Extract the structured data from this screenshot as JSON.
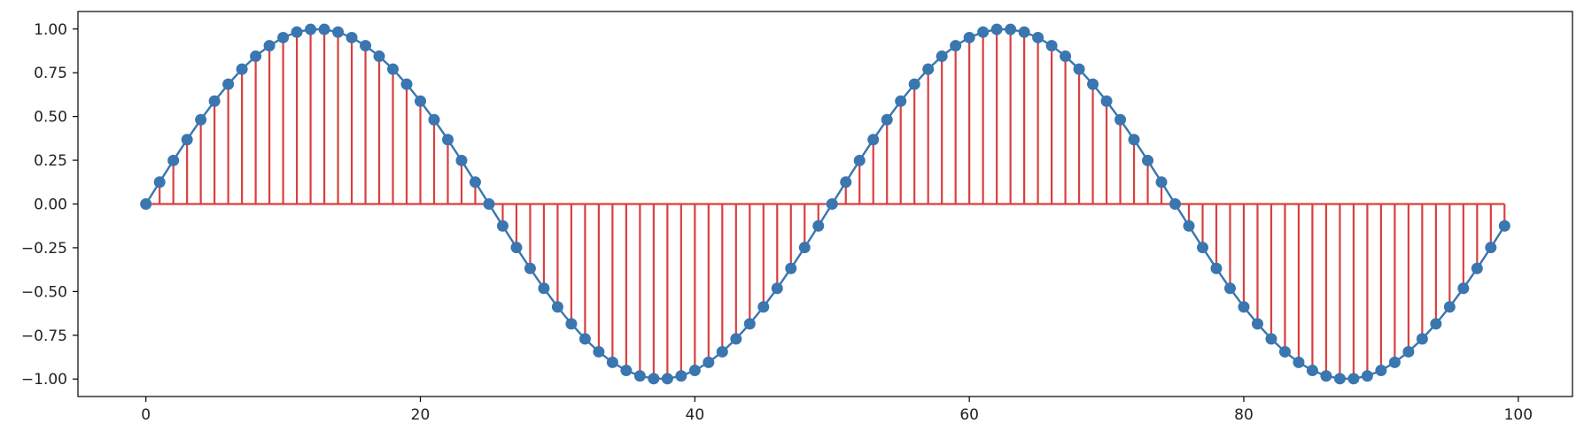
{
  "chart_data": {
    "type": "stem",
    "x_start": 0,
    "x_end": 99,
    "x_step": 1,
    "y_function": "sin(2*pi*x/50)",
    "y_values": [
      0,
      0.1253,
      0.2487,
      0.3681,
      0.4818,
      0.5878,
      0.6845,
      0.7705,
      0.8443,
      0.9048,
      0.9511,
      0.9823,
      0.998,
      0.998,
      0.9823,
      0.9511,
      0.9048,
      0.8443,
      0.7705,
      0.6845,
      0.5878,
      0.4818,
      0.3681,
      0.2487,
      0.1253,
      0,
      -0.1253,
      -0.2487,
      -0.3681,
      -0.4818,
      -0.5878,
      -0.6845,
      -0.7705,
      -0.8443,
      -0.9048,
      -0.9511,
      -0.9823,
      -0.998,
      -0.998,
      -0.9823,
      -0.9511,
      -0.9048,
      -0.8443,
      -0.7705,
      -0.6845,
      -0.5878,
      -0.4818,
      -0.3681,
      -0.2487,
      -0.1253,
      0,
      0.1253,
      0.2487,
      0.3681,
      0.4818,
      0.5878,
      0.6845,
      0.7705,
      0.8443,
      0.9048,
      0.9511,
      0.9823,
      0.998,
      0.998,
      0.9823,
      0.9511,
      0.9048,
      0.8443,
      0.7705,
      0.6845,
      0.5878,
      0.4818,
      0.3681,
      0.2487,
      0.1253,
      0,
      -0.1253,
      -0.2487,
      -0.3681,
      -0.4818,
      -0.5878,
      -0.6845,
      -0.7705,
      -0.8443,
      -0.9048,
      -0.9511,
      -0.9823,
      -0.998,
      -0.998,
      -0.9823,
      -0.9511,
      -0.9048,
      -0.8443,
      -0.7705,
      -0.6845,
      -0.5878,
      -0.4818,
      -0.3681,
      -0.2487,
      -0.1253
    ],
    "baseline": 0,
    "xlim": [
      -4.95,
      103.95
    ],
    "ylim": [
      -1.1,
      1.1
    ],
    "x_ticks": [
      0,
      20,
      40,
      60,
      80,
      100
    ],
    "x_tick_labels": [
      "0",
      "20",
      "40",
      "60",
      "80",
      "100"
    ],
    "y_ticks": [
      1,
      0.75,
      0.5,
      0.25,
      0,
      -0.25,
      -0.5,
      -0.75,
      -1
    ],
    "y_tick_labels": [
      "1.00",
      "0.75",
      "0.50",
      "0.25",
      "0.00",
      "−0.25",
      "−0.50",
      "−0.75",
      "−1.00"
    ],
    "title": "",
    "xlabel": "",
    "ylabel": "",
    "grid": false,
    "legend": false,
    "colors": {
      "marker": "#3a76af",
      "line": "#3a76af",
      "stem": "#d94040",
      "baseline": "#d94040",
      "axes": "#000000",
      "text": "#222222"
    }
  }
}
